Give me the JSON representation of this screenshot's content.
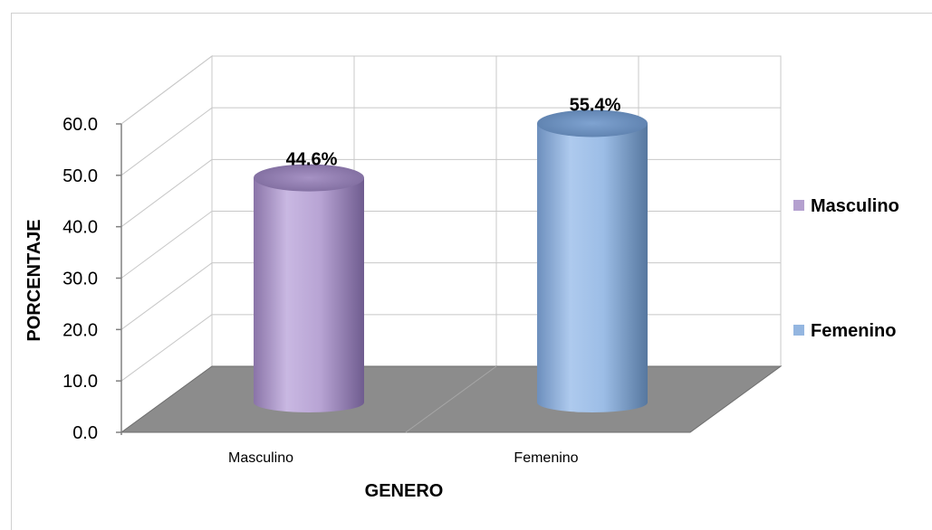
{
  "chart_data": {
    "type": "bar",
    "categories": [
      "Masculino",
      "Femenino"
    ],
    "series": [
      {
        "name": "Masculino",
        "values": [
          44.6,
          null
        ],
        "color": "#b4a0cf",
        "label": "44.6%"
      },
      {
        "name": "Femenino",
        "values": [
          null,
          55.4
        ],
        "color": "#94b6e0",
        "label": "55.4%"
      }
    ],
    "xlabel": "GENERO",
    "ylabel": "PORCENTAJE",
    "ylim": [
      0,
      60
    ],
    "yticks": [
      "0.0",
      "10.0",
      "20.0",
      "30.0",
      "40.0",
      "50.0",
      "60.0"
    ],
    "grid": true,
    "legend": "right",
    "style": "3d-cylinder",
    "floor_color": "#8c8c8c"
  }
}
